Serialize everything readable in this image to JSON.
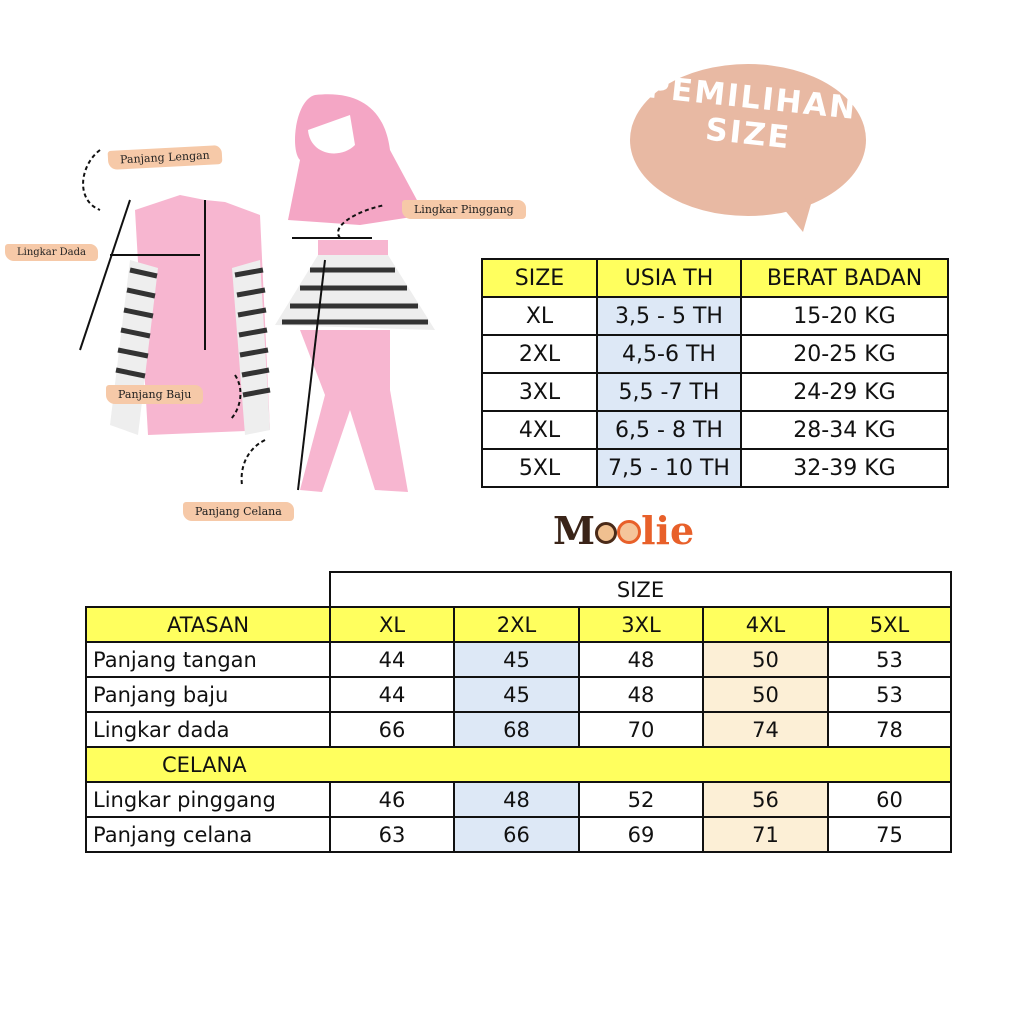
{
  "bubble": {
    "line1": "PEMILIHAN",
    "line2": "SIZE",
    "color": "#e8b9a3"
  },
  "labels": {
    "panjang_lengan": "Panjang Lengan",
    "lingkar_dada": "Lingkar Dada",
    "panjang_baju": "Panjang Baju",
    "lingkar_pinggang": "Lingkar Pinggang",
    "panjang_celana": "Panjang Celana"
  },
  "logo": {
    "text": "Moolie"
  },
  "age_table": {
    "headers": [
      "SIZE",
      "USIA TH",
      "BERAT BADAN"
    ],
    "rows": [
      [
        "XL",
        "3,5 - 5 TH",
        "15-20 KG"
      ],
      [
        "2XL",
        "4,5-6 TH",
        "20-25 KG"
      ],
      [
        "3XL",
        "5,5 -7 TH",
        "24-29 KG"
      ],
      [
        "4XL",
        "6,5 - 8 TH",
        "28-34 KG"
      ],
      [
        "5XL",
        "7,5 - 10 TH",
        "32-39 KG"
      ]
    ]
  },
  "size_table": {
    "size_header": "SIZE",
    "sizes": [
      "XL",
      "2XL",
      "3XL",
      "4XL",
      "5XL"
    ],
    "atasan": "ATASAN",
    "atasan_rows": [
      {
        "label": "Panjang tangan",
        "values": [
          "44",
          "45",
          "48",
          "50",
          "53"
        ]
      },
      {
        "label": "Panjang baju",
        "values": [
          "44",
          "45",
          "48",
          "50",
          "53"
        ]
      },
      {
        "label": "Lingkar dada",
        "values": [
          "66",
          "68",
          "70",
          "74",
          "78"
        ]
      }
    ],
    "celana": "CELANA",
    "celana_rows": [
      {
        "label": "Lingkar pinggang",
        "values": [
          "46",
          "48",
          "52",
          "56",
          "60"
        ]
      },
      {
        "label": "Panjang celana",
        "values": [
          "63",
          "66",
          "69",
          "71",
          "75"
        ]
      }
    ]
  },
  "colors": {
    "header": "#ffff5e",
    "blue_col": "#dde8f6",
    "peach_col": "#fcefd6"
  }
}
